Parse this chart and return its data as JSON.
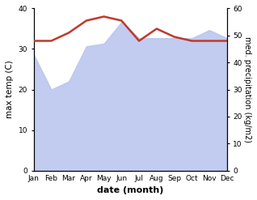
{
  "months": [
    "Jan",
    "Feb",
    "Mar",
    "Apr",
    "May",
    "Jun",
    "Jul",
    "Aug",
    "Sep",
    "Oct",
    "Nov",
    "Dec"
  ],
  "month_indices": [
    0,
    1,
    2,
    3,
    4,
    5,
    6,
    7,
    8,
    9,
    10,
    11
  ],
  "temperature": [
    32,
    32,
    34,
    37,
    38,
    37,
    32,
    35,
    33,
    32,
    32,
    32
  ],
  "precipitation": [
    43,
    30,
    33,
    46,
    47,
    55,
    49,
    49,
    49,
    49,
    52,
    49
  ],
  "temp_color": "#c0392b",
  "precip_color_fill": "#b8c4ee",
  "bg_color": "#ffffff",
  "xlabel": "date (month)",
  "ylabel_left": "max temp (C)",
  "ylabel_right": "med. precipitation (kg/m2)",
  "ylim_left": [
    0,
    40
  ],
  "ylim_right": [
    0,
    60
  ],
  "temp_linewidth": 1.8
}
